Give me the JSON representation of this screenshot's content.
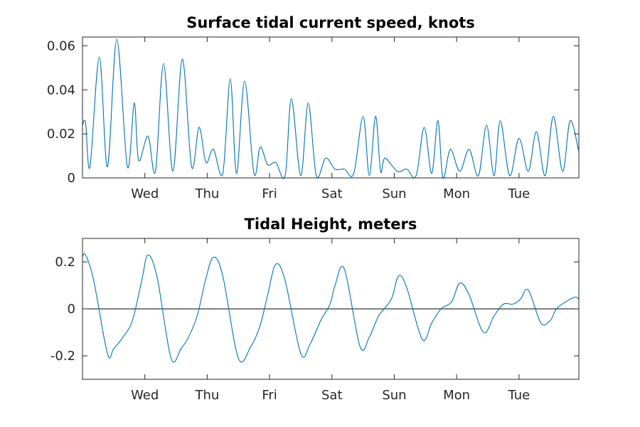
{
  "chart_data": [
    {
      "type": "line",
      "title": "Surface tidal current speed, knots",
      "xlabel": "",
      "ylabel": "",
      "xlim": [
        0,
        7.96
      ],
      "ylim": [
        0,
        0.064
      ],
      "grid": false,
      "legend": "none",
      "xtick_positions": [
        1,
        2,
        3,
        4,
        5,
        6,
        7
      ],
      "xtick_labels": [
        "Wed",
        "Thu",
        "Fri",
        "Sat",
        "Sun",
        "Mon",
        "Tue"
      ],
      "yticks": [
        0,
        0.02,
        0.04,
        0.06
      ],
      "ytick_labels": [
        "0",
        "0.02",
        "0.04",
        "0.06"
      ],
      "line_color": "#0072BD",
      "series": [
        {
          "x": [
            0,
            0.05,
            0.12,
            0.27,
            0.4,
            0.55,
            0.72,
            0.83,
            0.9,
            1.05,
            1.17,
            1.3,
            1.45,
            1.6,
            1.75,
            1.87,
            1.98,
            2.1,
            2.25,
            2.37,
            2.47,
            2.6,
            2.75,
            2.85,
            2.97,
            3.1,
            3.25,
            3.35,
            3.5,
            3.62,
            3.75,
            3.9,
            4.05,
            4.2,
            4.35,
            4.5,
            4.6,
            4.7,
            4.78,
            4.85,
            5.05,
            5.2,
            5.35,
            5.48,
            5.6,
            5.7,
            5.78,
            5.9,
            6.05,
            6.2,
            6.35,
            6.48,
            6.6,
            6.7,
            6.85,
            7.0,
            7.15,
            7.28,
            7.42,
            7.55,
            7.7,
            7.82,
            7.96
          ],
          "y": [
            0.024,
            0.025,
            0.005,
            0.055,
            0.005,
            0.063,
            0.005,
            0.034,
            0.008,
            0.019,
            0.003,
            0.052,
            0.003,
            0.054,
            0.005,
            0.023,
            0.007,
            0.013,
            0.002,
            0.045,
            0.002,
            0.044,
            0.002,
            0.014,
            0.006,
            0.007,
            0.001,
            0.036,
            0.001,
            0.034,
            0.001,
            0.009,
            0.004,
            0.004,
            0.002,
            0.028,
            0.001,
            0.028,
            0.003,
            0.009,
            0.003,
            0.004,
            0.001,
            0.023,
            0.002,
            0.026,
            0.0,
            0.013,
            0.003,
            0.013,
            0.001,
            0.024,
            0.001,
            0.026,
            0.001,
            0.018,
            0.003,
            0.021,
            0.001,
            0.028,
            0.003,
            0.026,
            0.012
          ]
        }
      ]
    },
    {
      "type": "line",
      "title": "Tidal Height, meters",
      "xlabel": "",
      "ylabel": "",
      "xlim": [
        0,
        7.96
      ],
      "ylim": [
        -0.3,
        0.3
      ],
      "grid": false,
      "legend": "none",
      "xtick_positions": [
        1,
        2,
        3,
        4,
        5,
        6,
        7
      ],
      "xtick_labels": [
        "Wed",
        "Thu",
        "Fri",
        "Sat",
        "Sun",
        "Mon",
        "Tue"
      ],
      "yticks": [
        -0.2,
        0,
        0.2
      ],
      "ytick_labels": [
        "-0.2",
        "0",
        "0.2"
      ],
      "zero_line": true,
      "line_color": "#0072BD",
      "series": [
        {
          "x": [
            0,
            0.05,
            0.18,
            0.4,
            0.5,
            0.65,
            0.8,
            0.95,
            1.05,
            1.2,
            1.42,
            1.58,
            1.72,
            1.85,
            1.97,
            2.1,
            2.25,
            2.5,
            2.7,
            2.85,
            2.97,
            3.1,
            3.25,
            3.5,
            3.65,
            3.82,
            3.97,
            4.05,
            4.2,
            4.45,
            4.6,
            4.75,
            4.95,
            5.07,
            5.2,
            5.45,
            5.6,
            5.75,
            5.92,
            6.05,
            6.2,
            6.43,
            6.6,
            6.75,
            6.9,
            7.02,
            7.15,
            7.35,
            7.5,
            7.6,
            7.75,
            7.9,
            7.96
          ],
          "y": [
            0.22,
            0.23,
            0.12,
            -0.19,
            -0.17,
            -0.12,
            -0.05,
            0.12,
            0.23,
            0.13,
            -0.21,
            -0.17,
            -0.11,
            -0.02,
            0.12,
            0.22,
            0.14,
            -0.21,
            -0.16,
            -0.07,
            0.06,
            0.19,
            0.12,
            -0.19,
            -0.15,
            -0.05,
            0.02,
            0.1,
            0.17,
            -0.16,
            -0.12,
            -0.03,
            0.04,
            0.14,
            0.09,
            -0.13,
            -0.06,
            -0.0,
            0.03,
            0.11,
            0.06,
            -0.1,
            -0.03,
            0.02,
            0.02,
            0.04,
            0.08,
            -0.06,
            -0.05,
            0.0,
            0.03,
            0.05,
            0.04
          ]
        }
      ]
    }
  ]
}
